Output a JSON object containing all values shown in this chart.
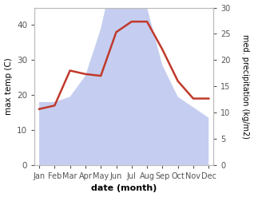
{
  "months": [
    "Jan",
    "Feb",
    "Mar",
    "Apr",
    "May",
    "Jun",
    "Jul",
    "Aug",
    "Sep",
    "Oct",
    "Nov",
    "Dec"
  ],
  "temperature": [
    16,
    17,
    27,
    26,
    25.5,
    38,
    41,
    41,
    33,
    24,
    19,
    19
  ],
  "precipitation": [
    12,
    12,
    13,
    17,
    26,
    39,
    44,
    30,
    19,
    13,
    11,
    9
  ],
  "temp_color": "#c0392b",
  "precip_fill_color": "#c5cef0",
  "temp_ylim": [
    0,
    45
  ],
  "precip_ylim": [
    0,
    30
  ],
  "temp_yticks": [
    0,
    10,
    20,
    30,
    40
  ],
  "precip_yticks": [
    0,
    5,
    10,
    15,
    20,
    25,
    30
  ],
  "xlabel": "date (month)",
  "ylabel_left": "max temp (C)",
  "ylabel_right": "med. precipitation (kg/m2)",
  "bg_color": "#ffffff"
}
